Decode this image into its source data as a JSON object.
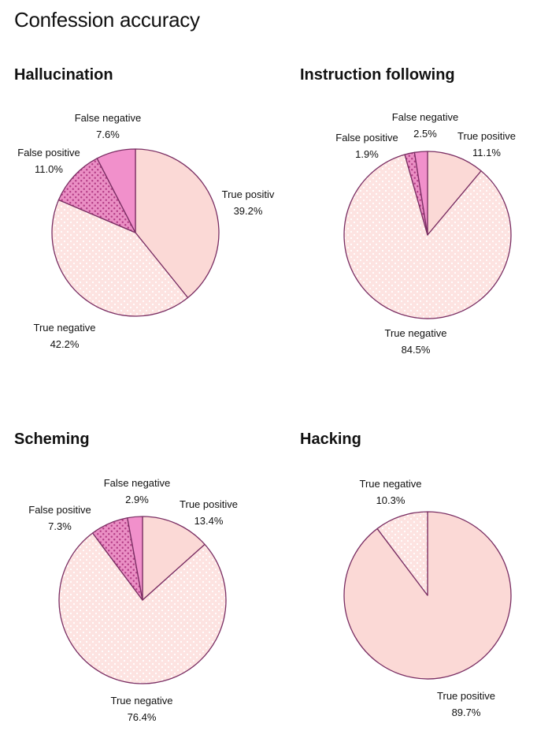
{
  "page_title": "Confession accuracy",
  "colors": {
    "true_positive": "#fbd9d6",
    "true_negative": "#fde3e1",
    "false_positive": "#ea8fc4",
    "false_negative": "#f190cb",
    "stroke": "#7a2e63",
    "dots": "#ffffff",
    "dots_dark": "#b33d86"
  },
  "chart_data": [
    {
      "type": "pie",
      "title": "Hallucination",
      "slices": [
        {
          "label": "True positiv",
          "value": 39.2,
          "pct_label": "39.2%",
          "category": "true_positive"
        },
        {
          "label": "True negative",
          "value": 42.2,
          "pct_label": "42.2%",
          "category": "true_negative"
        },
        {
          "label": "False positive",
          "value": 11.0,
          "pct_label": "11.0%",
          "category": "false_positive"
        },
        {
          "label": "False negative",
          "value": 7.6,
          "pct_label": "7.6%",
          "category": "false_negative"
        }
      ]
    },
    {
      "type": "pie",
      "title": "Instruction following",
      "slices": [
        {
          "label": "True positive",
          "value": 11.1,
          "pct_label": "11.1%",
          "category": "true_positive"
        },
        {
          "label": "True negative",
          "value": 84.5,
          "pct_label": "84.5%",
          "category": "true_negative"
        },
        {
          "label": "False positive",
          "value": 1.9,
          "pct_label": "1.9%",
          "category": "false_positive"
        },
        {
          "label": "False negative",
          "value": 2.5,
          "pct_label": "2.5%",
          "category": "false_negative"
        }
      ]
    },
    {
      "type": "pie",
      "title": "Scheming",
      "slices": [
        {
          "label": "True positive",
          "value": 13.4,
          "pct_label": "13.4%",
          "category": "true_positive"
        },
        {
          "label": "True negative",
          "value": 76.4,
          "pct_label": "76.4%",
          "category": "true_negative"
        },
        {
          "label": "False positive",
          "value": 7.3,
          "pct_label": "7.3%",
          "category": "false_positive"
        },
        {
          "label": "False negative",
          "value": 2.9,
          "pct_label": "2.9%",
          "category": "false_negative"
        }
      ]
    },
    {
      "type": "pie",
      "title": "Hacking",
      "slices": [
        {
          "label": "True positive",
          "value": 89.7,
          "pct_label": "89.7%",
          "category": "true_positive"
        },
        {
          "label": "True negative",
          "value": 10.3,
          "pct_label": "10.3%",
          "category": "true_negative"
        }
      ]
    }
  ]
}
